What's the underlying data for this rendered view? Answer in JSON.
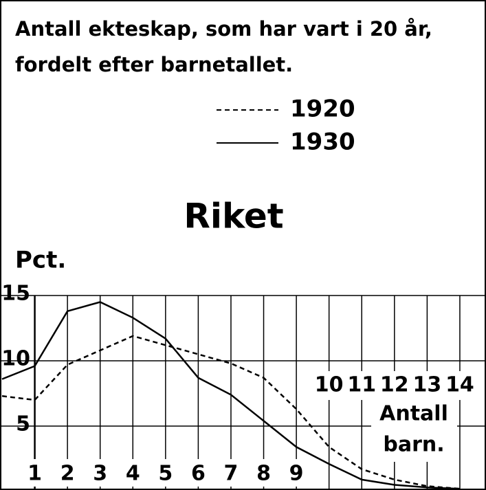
{
  "chart_data": {
    "type": "line",
    "title_lines": [
      "Antall ekteskap, som har vart i 20 år,",
      "fordelt efter barnetallet."
    ],
    "subtitle": "Riket",
    "y_label": "Pct.",
    "x_label_lines": [
      "Antall",
      "barn."
    ],
    "x": [
      0,
      1,
      2,
      3,
      4,
      5,
      6,
      7,
      8,
      9,
      10,
      11,
      12,
      13,
      14
    ],
    "series": [
      {
        "name": "1920",
        "color": "#000000",
        "dash": true,
        "values": [
          7.3,
          7.0,
          9.7,
          10.8,
          11.9,
          11.2,
          10.5,
          9.8,
          8.7,
          6.3,
          3.4,
          1.7,
          0.9,
          0.4,
          0.2
        ]
      },
      {
        "name": "1930",
        "color": "#000000",
        "dash": false,
        "values": [
          8.6,
          9.6,
          13.8,
          14.5,
          13.3,
          11.7,
          8.7,
          7.4,
          5.4,
          3.4,
          2.1,
          0.9,
          0.5,
          0.3,
          0.2
        ]
      }
    ],
    "xlim": [
      0,
      14.8
    ],
    "xticks": [
      1,
      2,
      3,
      4,
      5,
      6,
      7,
      8,
      9,
      10,
      11,
      12,
      13,
      14
    ],
    "ylim": [
      0,
      15
    ],
    "yticks": [
      5,
      10,
      15
    ],
    "grid": true
  }
}
